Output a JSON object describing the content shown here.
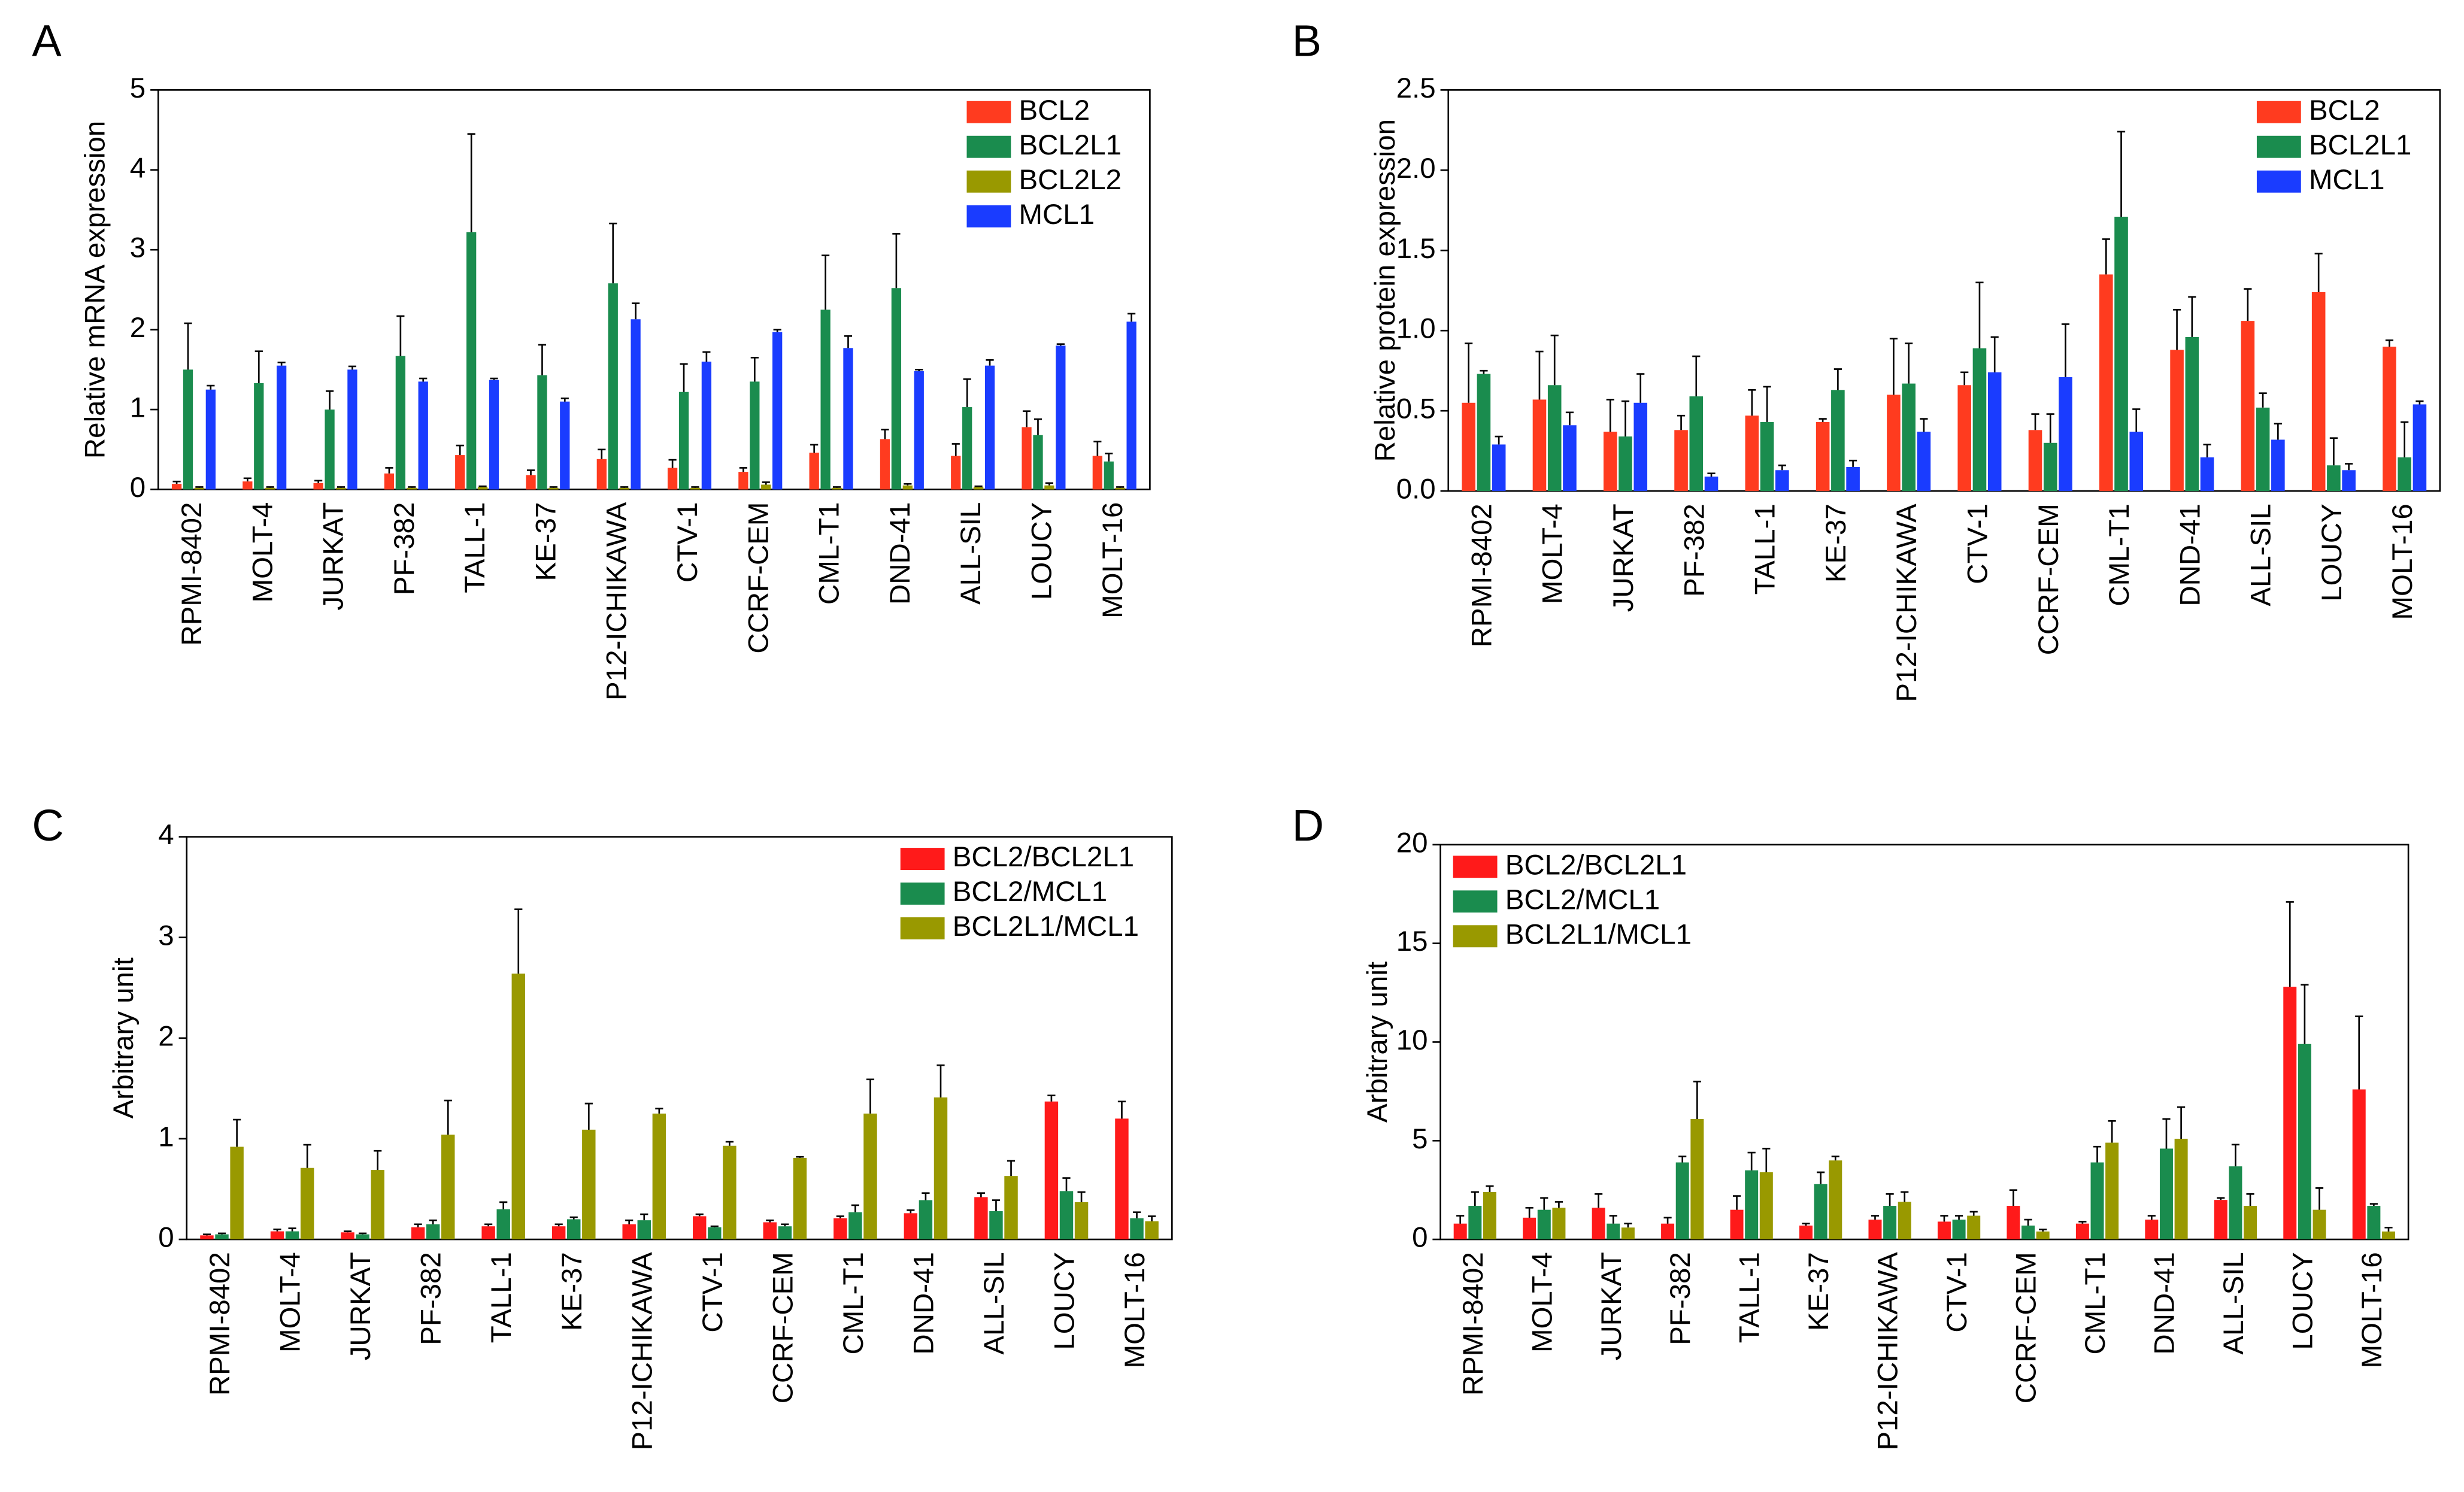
{
  "chart_data": [
    {
      "type": "bar",
      "label": "A",
      "ylabel": "Relative mRNA expression",
      "legend": "upper right",
      "categories": [
        "RPMI-8402",
        "MOLT-4",
        "JURKAT",
        "PF-382",
        "TALL-1",
        "KE-37",
        "P12-ICHIKAWA",
        "CTV-1",
        "CCRF-CEM",
        "CML-T1",
        "DND-41",
        "ALL-SIL",
        "LOUCY",
        "MOLT-16"
      ],
      "ylim": [
        0,
        5
      ],
      "yticks": [
        0,
        1,
        2,
        3,
        4,
        5
      ],
      "series": [
        {
          "name": "BCL2",
          "color": "#ff3b1f",
          "values": [
            0.07,
            0.1,
            0.08,
            0.2,
            0.43,
            0.18,
            0.38,
            0.27,
            0.22,
            0.46,
            0.63,
            0.42,
            0.78,
            0.42
          ],
          "errors": [
            0.03,
            0.04,
            0.03,
            0.07,
            0.12,
            0.06,
            0.12,
            0.1,
            0.05,
            0.1,
            0.12,
            0.15,
            0.2,
            0.18
          ]
        },
        {
          "name": "BCL2L1",
          "color": "#1a8c4e",
          "values": [
            1.5,
            1.33,
            1.0,
            1.67,
            3.22,
            1.43,
            2.58,
            1.22,
            1.35,
            2.25,
            2.52,
            1.03,
            0.68,
            0.35
          ],
          "errors": [
            0.58,
            0.4,
            0.23,
            0.5,
            1.23,
            0.38,
            0.75,
            0.35,
            0.3,
            0.68,
            0.68,
            0.35,
            0.2,
            0.1
          ]
        },
        {
          "name": "BCL2L2",
          "color": "#999900",
          "values": [
            0.02,
            0.02,
            0.02,
            0.02,
            0.03,
            0.02,
            0.02,
            0.02,
            0.06,
            0.02,
            0.05,
            0.03,
            0.05,
            0.02
          ],
          "errors": [
            0.01,
            0.01,
            0.01,
            0.01,
            0.01,
            0.01,
            0.01,
            0.01,
            0.03,
            0.01,
            0.02,
            0.01,
            0.03,
            0.01
          ]
        },
        {
          "name": "MCL1",
          "color": "#1a3cff",
          "values": [
            1.25,
            1.55,
            1.5,
            1.35,
            1.37,
            1.1,
            2.13,
            1.6,
            1.97,
            1.77,
            1.48,
            1.55,
            1.8,
            2.1
          ],
          "errors": [
            0.05,
            0.04,
            0.04,
            0.04,
            0.02,
            0.04,
            0.2,
            0.12,
            0.03,
            0.15,
            0.02,
            0.07,
            0.02,
            0.1
          ]
        }
      ]
    },
    {
      "type": "bar",
      "label": "B",
      "ylabel": "Relative protein expression",
      "legend": "upper right",
      "categories": [
        "RPMI-8402",
        "MOLT-4",
        "JURKAT",
        "PF-382",
        "TALL-1",
        "KE-37",
        "P12-ICHIKAWA",
        "CTV-1",
        "CCRF-CEM",
        "CML-T1",
        "DND-41",
        "ALL-SIL",
        "LOUCY",
        "MOLT-16"
      ],
      "ylim": [
        0,
        2.5
      ],
      "yticks": [
        {
          "value": 0,
          "label": "0.0"
        },
        0.5,
        {
          "value": 1,
          "label": "1.0"
        },
        1.5,
        {
          "value": 2,
          "label": "2.0"
        },
        2.5
      ],
      "series": [
        {
          "name": "BCL2",
          "color": "#ff3b1f",
          "values": [
            0.55,
            0.57,
            0.37,
            0.38,
            0.47,
            0.43,
            0.6,
            0.66,
            0.38,
            1.35,
            0.88,
            1.06,
            1.24,
            0.9
          ],
          "errors": [
            0.37,
            0.3,
            0.2,
            0.09,
            0.16,
            0.02,
            0.35,
            0.08,
            0.1,
            0.22,
            0.25,
            0.2,
            0.24,
            0.04
          ]
        },
        {
          "name": "BCL2L1",
          "color": "#1a8c4e",
          "values": [
            0.73,
            0.66,
            0.34,
            0.59,
            0.43,
            0.63,
            0.67,
            0.89,
            0.3,
            1.71,
            0.96,
            0.52,
            0.16,
            0.21
          ],
          "errors": [
            0.02,
            0.31,
            0.22,
            0.25,
            0.22,
            0.13,
            0.25,
            0.41,
            0.18,
            0.53,
            0.25,
            0.09,
            0.17,
            0.22
          ]
        },
        {
          "name": "MCL1",
          "color": "#1a3cff",
          "values": [
            0.29,
            0.41,
            0.55,
            0.09,
            0.13,
            0.15,
            0.37,
            0.74,
            0.71,
            0.37,
            0.21,
            0.32,
            0.13,
            0.54
          ],
          "errors": [
            0.05,
            0.08,
            0.18,
            0.02,
            0.03,
            0.04,
            0.08,
            0.22,
            0.33,
            0.14,
            0.08,
            0.1,
            0.04,
            0.02
          ]
        }
      ]
    },
    {
      "type": "bar",
      "label": "C",
      "ylabel": "Arbitrary unit",
      "legend": "upper right",
      "categories": [
        "RPMI-8402",
        "MOLT-4",
        "JURKAT",
        "PF-382",
        "TALL-1",
        "KE-37",
        "P12-ICHIKAWA",
        "CTV-1",
        "CCRF-CEM",
        "CML-T1",
        "DND-41",
        "ALL-SIL",
        "LOUCY",
        "MOLT-16"
      ],
      "ylim": [
        0,
        4
      ],
      "yticks": [
        0,
        1,
        2,
        3,
        4
      ],
      "series": [
        {
          "name": "BCL2/BCL2L1",
          "color": "#ff1a1a",
          "values": [
            0.04,
            0.08,
            0.07,
            0.12,
            0.13,
            0.13,
            0.15,
            0.23,
            0.17,
            0.21,
            0.26,
            0.42,
            1.37,
            1.2
          ],
          "errors": [
            0.01,
            0.02,
            0.01,
            0.03,
            0.02,
            0.02,
            0.04,
            0.02,
            0.02,
            0.02,
            0.03,
            0.04,
            0.06,
            0.17
          ]
        },
        {
          "name": "BCL2/MCL1",
          "color": "#1a8c4e",
          "values": [
            0.05,
            0.08,
            0.05,
            0.15,
            0.3,
            0.2,
            0.19,
            0.12,
            0.13,
            0.27,
            0.39,
            0.28,
            0.48,
            0.21
          ],
          "errors": [
            0.01,
            0.03,
            0.01,
            0.04,
            0.07,
            0.02,
            0.06,
            0.01,
            0.02,
            0.07,
            0.07,
            0.11,
            0.13,
            0.06
          ]
        },
        {
          "name": "BCL2L1/MCL1",
          "color": "#999900",
          "values": [
            0.92,
            0.71,
            0.69,
            1.04,
            2.64,
            1.09,
            1.25,
            0.93,
            0.81,
            1.25,
            1.41,
            0.63,
            0.37,
            0.18
          ],
          "errors": [
            0.27,
            0.23,
            0.19,
            0.34,
            0.64,
            0.26,
            0.05,
            0.04,
            0.01,
            0.34,
            0.32,
            0.15,
            0.1,
            0.05
          ]
        }
      ]
    },
    {
      "type": "bar",
      "label": "D",
      "ylabel": "Arbitrary unit",
      "legend": "upper left",
      "categories": [
        "RPMI-8402",
        "MOLT-4",
        "JURKAT",
        "PF-382",
        "TALL-1",
        "KE-37",
        "P12-ICHIKAWA",
        "CTV-1",
        "CCRF-CEM",
        "CML-T1",
        "DND-41",
        "ALL-SIL",
        "LOUCY",
        "MOLT-16"
      ],
      "ylim": [
        0,
        20
      ],
      "yticks": [
        0,
        5,
        10,
        15,
        20
      ],
      "series": [
        {
          "name": "BCL2/BCL2L1",
          "color": "#ff1a1a",
          "values": [
            0.8,
            1.1,
            1.6,
            0.8,
            1.5,
            0.7,
            1.0,
            0.9,
            1.7,
            0.8,
            1.0,
            2.0,
            12.8,
            7.6
          ],
          "errors": [
            0.4,
            0.5,
            0.7,
            0.3,
            0.7,
            0.1,
            0.2,
            0.3,
            0.8,
            0.1,
            0.2,
            0.1,
            4.3,
            3.7
          ]
        },
        {
          "name": "BCL2/MCL1",
          "color": "#1a8c4e",
          "values": [
            1.7,
            1.5,
            0.8,
            3.9,
            3.5,
            2.8,
            1.7,
            1.0,
            0.7,
            3.9,
            4.6,
            3.7,
            9.9,
            1.7
          ],
          "errors": [
            0.7,
            0.6,
            0.4,
            0.3,
            0.9,
            0.6,
            0.6,
            0.2,
            0.3,
            0.8,
            1.5,
            1.1,
            3.0,
            0.1
          ]
        },
        {
          "name": "BCL2L1/MCL1",
          "color": "#999900",
          "values": [
            2.4,
            1.6,
            0.6,
            6.1,
            3.4,
            4.0,
            1.9,
            1.2,
            0.4,
            4.9,
            5.1,
            1.7,
            1.5,
            0.4
          ],
          "errors": [
            0.3,
            0.3,
            0.2,
            1.9,
            1.2,
            0.2,
            0.5,
            0.2,
            0.1,
            1.1,
            1.6,
            0.6,
            1.1,
            0.2
          ]
        }
      ]
    }
  ]
}
